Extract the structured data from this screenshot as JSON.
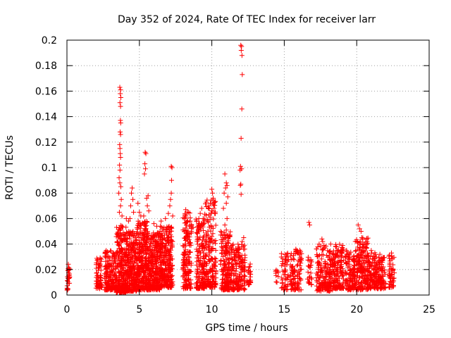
{
  "chart_data": {
    "type": "scatter",
    "title": "Day 352 of 2024, Rate Of TEC Index for receiver larr",
    "xlabel": "GPS time / hours",
    "ylabel": "ROTI / TECUs",
    "xlim": [
      0,
      25
    ],
    "ylim": [
      0,
      0.2
    ],
    "xticks": [
      0,
      5,
      10,
      15,
      20,
      25
    ],
    "yticks": [
      0,
      0.02,
      0.04,
      0.06,
      0.08,
      0.1,
      0.12,
      0.14,
      0.16,
      0.18,
      0.2
    ],
    "xtick_labels": [
      "0",
      "5",
      "10",
      "15",
      "20",
      "25"
    ],
    "ytick_labels": [
      "0",
      "0.02",
      "0.04",
      "0.06",
      "0.08",
      "0.1",
      "0.12",
      "0.14",
      "0.16",
      "0.18",
      "0.2"
    ],
    "grid": true,
    "marker": "+",
    "marker_color": "#ff0000",
    "series": [
      {
        "name": "ROTI",
        "clusters": [
          {
            "x_range": [
              0.0,
              0.2
            ],
            "y_range": [
              0.003,
              0.027
            ],
            "count": 30
          },
          {
            "x_range": [
              2.0,
              2.4
            ],
            "y_range": [
              0.005,
              0.03
            ],
            "count": 60
          },
          {
            "x_range": [
              2.6,
              3.4
            ],
            "y_range": [
              0.004,
              0.035
            ],
            "count": 180
          },
          {
            "x_range": [
              3.4,
              4.1
            ],
            "y_range": [
              0.002,
              0.055
            ],
            "count": 260
          },
          {
            "x_range": [
              4.1,
              4.8
            ],
            "y_range": [
              0.003,
              0.05
            ],
            "count": 260
          },
          {
            "x_range": [
              4.8,
              5.6
            ],
            "y_range": [
              0.004,
              0.058
            ],
            "count": 300
          },
          {
            "x_range": [
              5.6,
              6.4
            ],
            "y_range": [
              0.004,
              0.05
            ],
            "count": 280
          },
          {
            "x_range": [
              6.4,
              7.3
            ],
            "y_range": [
              0.006,
              0.055
            ],
            "count": 300
          },
          {
            "x_range": [
              8.0,
              8.6
            ],
            "y_range": [
              0.005,
              0.065
            ],
            "count": 170
          },
          {
            "x_range": [
              8.9,
              9.5
            ],
            "y_range": [
              0.005,
              0.06
            ],
            "count": 160
          },
          {
            "x_range": [
              9.5,
              10.3
            ],
            "y_range": [
              0.006,
              0.075
            ],
            "count": 200
          },
          {
            "x_range": [
              10.6,
              11.3
            ],
            "y_range": [
              0.004,
              0.05
            ],
            "count": 170
          },
          {
            "x_range": [
              11.3,
              12.3
            ],
            "y_range": [
              0.004,
              0.04
            ],
            "count": 180
          },
          {
            "x_range": [
              12.4,
              12.7
            ],
            "y_range": [
              0.008,
              0.025
            ],
            "count": 25
          },
          {
            "x_range": [
              14.3,
              14.6
            ],
            "y_range": [
              0.01,
              0.02
            ],
            "count": 10
          },
          {
            "x_range": [
              14.8,
              15.3
            ],
            "y_range": [
              0.004,
              0.033
            ],
            "count": 50
          },
          {
            "x_range": [
              15.4,
              16.2
            ],
            "y_range": [
              0.004,
              0.036
            ],
            "count": 110
          },
          {
            "x_range": [
              16.6,
              16.9
            ],
            "y_range": [
              0.008,
              0.03
            ],
            "count": 25
          },
          {
            "x_range": [
              17.2,
              17.9
            ],
            "y_range": [
              0.003,
              0.04
            ],
            "count": 110
          },
          {
            "x_range": [
              17.9,
              18.5
            ],
            "y_range": [
              0.003,
              0.035
            ],
            "count": 110
          },
          {
            "x_range": [
              18.5,
              19.1
            ],
            "y_range": [
              0.005,
              0.04
            ],
            "count": 120
          },
          {
            "x_range": [
              19.2,
              19.9
            ],
            "y_range": [
              0.004,
              0.035
            ],
            "count": 130
          },
          {
            "x_range": [
              19.9,
              20.8
            ],
            "y_range": [
              0.004,
              0.045
            ],
            "count": 190
          },
          {
            "x_range": [
              20.8,
              21.4
            ],
            "y_range": [
              0.005,
              0.035
            ],
            "count": 110
          },
          {
            "x_range": [
              21.4,
              22.0
            ],
            "y_range": [
              0.005,
              0.03
            ],
            "count": 90
          },
          {
            "x_range": [
              22.2,
              22.6
            ],
            "y_range": [
              0.006,
              0.033
            ],
            "count": 50
          }
        ],
        "points": [
          [
            3.65,
            0.163
          ],
          [
            3.7,
            0.161
          ],
          [
            3.68,
            0.158
          ],
          [
            3.72,
            0.155
          ],
          [
            3.66,
            0.151
          ],
          [
            3.7,
            0.148
          ],
          [
            3.69,
            0.137
          ],
          [
            3.71,
            0.135
          ],
          [
            3.67,
            0.128
          ],
          [
            3.7,
            0.126
          ],
          [
            3.64,
            0.118
          ],
          [
            3.66,
            0.115
          ],
          [
            3.68,
            0.111
          ],
          [
            3.7,
            0.108
          ],
          [
            3.63,
            0.102
          ],
          [
            3.66,
            0.098
          ],
          [
            3.6,
            0.092
          ],
          [
            3.65,
            0.088
          ],
          [
            3.72,
            0.085
          ],
          [
            3.58,
            0.08
          ],
          [
            3.75,
            0.075
          ],
          [
            3.7,
            0.07
          ],
          [
            3.62,
            0.065
          ],
          [
            3.8,
            0.062
          ],
          [
            4.5,
            0.084
          ],
          [
            4.45,
            0.08
          ],
          [
            4.55,
            0.075
          ],
          [
            4.4,
            0.07
          ],
          [
            4.6,
            0.065
          ],
          [
            4.35,
            0.06
          ],
          [
            4.25,
            0.058
          ],
          [
            4.1,
            0.06
          ],
          [
            4.9,
            0.072
          ],
          [
            5.0,
            0.065
          ],
          [
            5.1,
            0.062
          ],
          [
            5.4,
            0.112
          ],
          [
            5.45,
            0.111
          ],
          [
            5.38,
            0.103
          ],
          [
            5.42,
            0.099
          ],
          [
            5.35,
            0.095
          ],
          [
            5.6,
            0.078
          ],
          [
            5.5,
            0.076
          ],
          [
            5.55,
            0.07
          ],
          [
            5.65,
            0.066
          ],
          [
            5.3,
            0.062
          ],
          [
            6.0,
            0.056
          ],
          [
            6.2,
            0.054
          ],
          [
            6.5,
            0.058
          ],
          [
            6.8,
            0.06
          ],
          [
            7.2,
            0.101
          ],
          [
            7.25,
            0.1
          ],
          [
            7.22,
            0.09
          ],
          [
            7.2,
            0.08
          ],
          [
            7.15,
            0.075
          ],
          [
            7.1,
            0.07
          ],
          [
            7.0,
            0.064
          ],
          [
            7.3,
            0.062
          ],
          [
            8.2,
            0.067
          ],
          [
            8.3,
            0.065
          ],
          [
            8.1,
            0.06
          ],
          [
            8.5,
            0.058
          ],
          [
            8.7,
            0.053
          ],
          [
            8.6,
            0.05
          ],
          [
            9.3,
            0.068
          ],
          [
            9.2,
            0.064
          ],
          [
            9.4,
            0.06
          ],
          [
            9.1,
            0.056
          ],
          [
            9.8,
            0.07
          ],
          [
            10.0,
            0.083
          ],
          [
            10.05,
            0.08
          ],
          [
            10.1,
            0.076
          ],
          [
            9.9,
            0.072
          ],
          [
            10.15,
            0.068
          ],
          [
            10.2,
            0.064
          ],
          [
            10.9,
            0.095
          ],
          [
            11.0,
            0.088
          ],
          [
            11.05,
            0.086
          ],
          [
            10.95,
            0.084
          ],
          [
            10.85,
            0.08
          ],
          [
            11.1,
            0.077
          ],
          [
            11.0,
            0.072
          ],
          [
            10.8,
            0.068
          ],
          [
            11.05,
            0.06
          ],
          [
            10.9,
            0.055
          ],
          [
            11.0,
            0.051
          ],
          [
            12.0,
            0.196
          ],
          [
            12.05,
            0.195
          ],
          [
            12.03,
            0.192
          ],
          [
            12.08,
            0.188
          ],
          [
            12.1,
            0.173
          ],
          [
            12.07,
            0.146
          ],
          [
            12.02,
            0.123
          ],
          [
            11.98,
            0.101
          ],
          [
            12.05,
            0.099
          ],
          [
            11.95,
            0.098
          ],
          [
            12.0,
            0.087
          ],
          [
            11.97,
            0.086
          ],
          [
            12.02,
            0.079
          ],
          [
            12.2,
            0.045
          ],
          [
            12.1,
            0.042
          ],
          [
            15.8,
            0.036
          ],
          [
            15.9,
            0.034
          ],
          [
            16.7,
            0.057
          ],
          [
            16.75,
            0.055
          ],
          [
            17.6,
            0.044
          ],
          [
            17.65,
            0.042
          ],
          [
            18.2,
            0.04
          ],
          [
            18.6,
            0.038
          ],
          [
            19.1,
            0.036
          ],
          [
            19.3,
            0.035
          ],
          [
            20.1,
            0.055
          ],
          [
            20.2,
            0.052
          ],
          [
            20.3,
            0.05
          ],
          [
            20.35,
            0.045
          ],
          [
            20.25,
            0.041
          ],
          [
            20.4,
            0.038
          ],
          [
            20.5,
            0.035
          ],
          [
            21.6,
            0.032
          ],
          [
            22.4,
            0.033
          ]
        ]
      }
    ]
  }
}
